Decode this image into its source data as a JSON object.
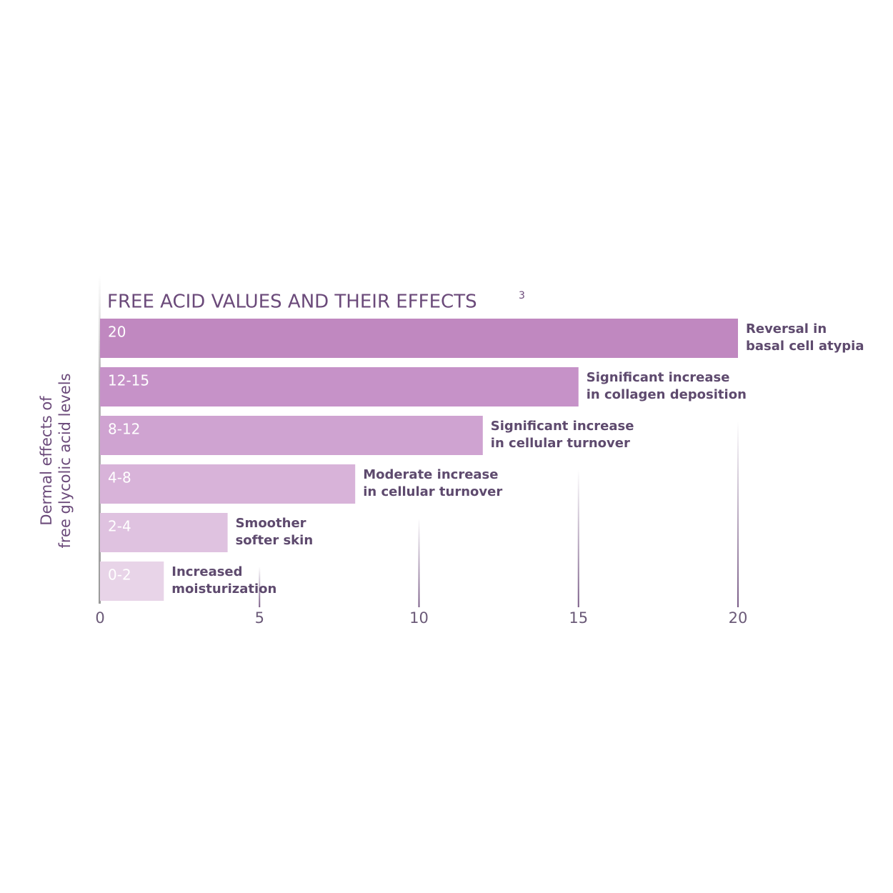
{
  "chart_data": {
    "type": "bar",
    "orientation": "horizontal",
    "title": "FREE ACID VALUES AND THEIR EFFECTS",
    "title_footnote": "3",
    "y_label": [
      "Dermal effects of",
      "free glycolic acid levels"
    ],
    "categories": [
      "20",
      "12-15",
      "8-12",
      "4-8",
      "2-4",
      "0-2"
    ],
    "values": [
      20,
      15,
      12,
      8,
      4,
      2
    ],
    "colors": [
      "#c088c0",
      "#c692c8",
      "#cfa3d1",
      "#d8b3d9",
      "#dfc2e0",
      "#e8d4e8"
    ],
    "effects": [
      [
        "Reversal in",
        "basal cell atypia"
      ],
      [
        "Significant increase",
        "in collagen deposition"
      ],
      [
        "Significant increase",
        "in cellular turnover"
      ],
      [
        "Moderate increase",
        "in cellular turnover"
      ],
      [
        "Smoother",
        "softer skin"
      ],
      [
        "Increased",
        "moisturization"
      ]
    ],
    "xlim": [
      0,
      20
    ],
    "xticks": [
      0,
      5,
      10,
      15,
      20
    ],
    "grid": true
  }
}
